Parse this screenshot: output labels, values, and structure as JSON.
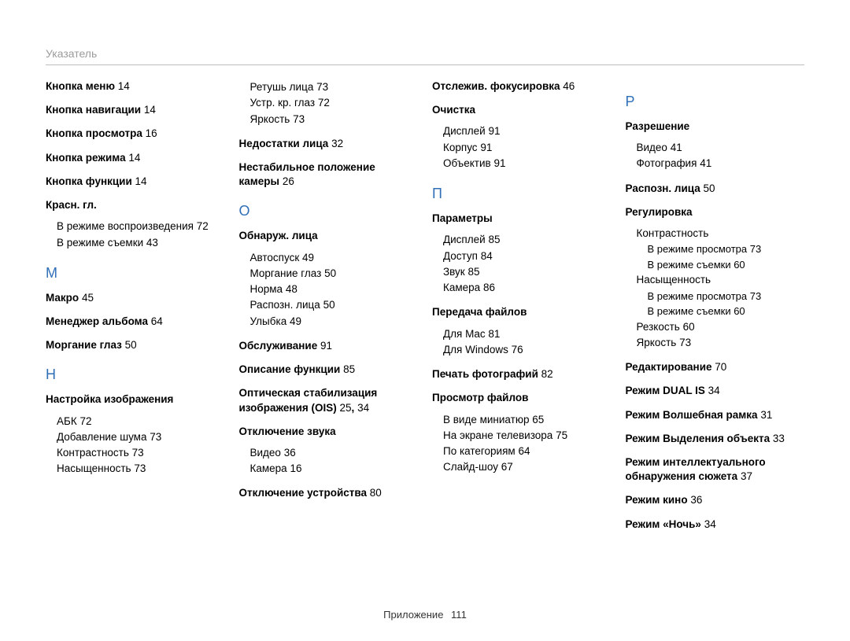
{
  "header": {
    "title": "Указатель"
  },
  "footer": {
    "label": "Приложение",
    "page": "111"
  },
  "colors": {
    "heading": "#2f6fb7",
    "bodyText": "#000000",
    "headerText": "#9b9b9b",
    "rule": "#bdbdbd"
  },
  "columns": [
    {
      "blocks": [
        {
          "type": "entry",
          "label": "Кнопка меню",
          "page": "14"
        },
        {
          "type": "entry",
          "label": "Кнопка навигации",
          "page": "14"
        },
        {
          "type": "entry",
          "label": "Кнопка просмотра",
          "page": "16"
        },
        {
          "type": "entry",
          "label": "Кнопка режима",
          "page": "14"
        },
        {
          "type": "entry",
          "label": "Кнопка функции",
          "page": "14"
        },
        {
          "type": "group",
          "label": "Красн. гл.",
          "items": [
            {
              "label": "В режиме воспроизведения",
              "page": "72"
            },
            {
              "label": "В режиме съемки",
              "page": "43"
            }
          ]
        },
        {
          "type": "letter",
          "letter": "М"
        },
        {
          "type": "entry",
          "label": "Макро",
          "page": "45"
        },
        {
          "type": "entry",
          "label": "Менеджер альбома",
          "page": "64"
        },
        {
          "type": "entry",
          "label": "Моргание глаз",
          "page": "50"
        },
        {
          "type": "letter",
          "letter": "Н"
        },
        {
          "type": "group",
          "label": "Настройка изображения",
          "items": [
            {
              "label": "АБК",
              "page": "72"
            },
            {
              "label": "Добавление шума",
              "page": "73"
            },
            {
              "label": "Контрастность",
              "page": "73"
            },
            {
              "label": "Насыщенность",
              "page": "73"
            }
          ]
        }
      ]
    },
    {
      "blocks": [
        {
          "type": "subonly",
          "items": [
            {
              "label": "Ретушь лица",
              "page": "73"
            },
            {
              "label": "Устр. кр. глаз",
              "page": "72"
            },
            {
              "label": "Яркость",
              "page": "73"
            }
          ]
        },
        {
          "type": "entry",
          "label": "Недостатки лица",
          "page": "32"
        },
        {
          "type": "entry",
          "label": "Нестабильное положение камеры",
          "page": "26"
        },
        {
          "type": "letter",
          "letter": "О"
        },
        {
          "type": "group",
          "label": "Обнаруж. лица",
          "items": [
            {
              "label": "Автоспуск",
              "page": "49"
            },
            {
              "label": "Моргание глаз",
              "page": "50"
            },
            {
              "label": "Норма",
              "page": "48"
            },
            {
              "label": "Распозн. лица",
              "page": "50"
            },
            {
              "label": "Улыбка",
              "page": "49"
            }
          ]
        },
        {
          "type": "entry",
          "label": "Обслуживание",
          "page": "91"
        },
        {
          "type": "entry",
          "label": "Описание функции",
          "page": "85"
        },
        {
          "type": "entry_multi",
          "label": "Оптическая стабилизация изображения (OIS)",
          "pages": [
            "25",
            "34"
          ]
        },
        {
          "type": "group",
          "label": "Отключение звука",
          "items": [
            {
              "label": "Видео",
              "page": "36"
            },
            {
              "label": "Камера",
              "page": "16"
            }
          ]
        },
        {
          "type": "entry",
          "label": "Отключение устройства",
          "page": "80"
        }
      ]
    },
    {
      "blocks": [
        {
          "type": "entry",
          "label": "Отслежив. фокусировка",
          "page": "46"
        },
        {
          "type": "group",
          "label": "Очистка",
          "items": [
            {
              "label": "Дисплей",
              "page": "91"
            },
            {
              "label": "Корпус",
              "page": "91"
            },
            {
              "label": "Объектив",
              "page": "91"
            }
          ]
        },
        {
          "type": "letter",
          "letter": "П"
        },
        {
          "type": "group",
          "label": "Параметры",
          "items": [
            {
              "label": "Дисплей",
              "page": "85"
            },
            {
              "label": "Доступ",
              "page": "84"
            },
            {
              "label": "Звук",
              "page": "85"
            },
            {
              "label": "Камера",
              "page": "86"
            }
          ]
        },
        {
          "type": "group",
          "label": "Передача файлов",
          "items": [
            {
              "label": "Для Mac",
              "page": "81"
            },
            {
              "label": "Для Windows",
              "page": "76"
            }
          ]
        },
        {
          "type": "entry",
          "label": "Печать фотографий",
          "page": "82"
        },
        {
          "type": "group",
          "label": "Просмотр файлов",
          "items": [
            {
              "label": "В виде миниатюр",
              "page": "65"
            },
            {
              "label": "На экране телевизора",
              "page": "75"
            },
            {
              "label": "По категориям",
              "page": "64"
            },
            {
              "label": "Слайд-шоу",
              "page": "67"
            }
          ]
        }
      ]
    },
    {
      "blocks": [
        {
          "type": "letter",
          "letter": "Р"
        },
        {
          "type": "group",
          "label": "Разрешение",
          "items": [
            {
              "label": "Видео",
              "page": "41"
            },
            {
              "label": "Фотография",
              "page": "41"
            }
          ]
        },
        {
          "type": "entry",
          "label": "Распозн. лица",
          "page": "50"
        },
        {
          "type": "nestedgroup",
          "label": "Регулировка",
          "items": [
            {
              "label": "Контрастность",
              "children": [
                {
                  "label": "В режиме просмотра",
                  "page": "73"
                },
                {
                  "label": "В режиме съемки",
                  "page": "60"
                }
              ]
            },
            {
              "label": "Насыщенность",
              "children": [
                {
                  "label": "В режиме просмотра",
                  "page": "73"
                },
                {
                  "label": "В режиме съемки",
                  "page": "60"
                }
              ]
            },
            {
              "label": "Резкость",
              "page": "60"
            },
            {
              "label": "Яркость",
              "page": "73"
            }
          ]
        },
        {
          "type": "entry",
          "label": "Редактирование",
          "page": "70"
        },
        {
          "type": "entry",
          "label": "Режим DUAL IS",
          "page": "34"
        },
        {
          "type": "entry",
          "label": "Режим Волшебная рамка",
          "page": "31"
        },
        {
          "type": "entry",
          "label": "Режим Выделения объекта",
          "page": "33"
        },
        {
          "type": "entry",
          "label": "Режим интеллектуального обнаружения сюжета",
          "page": "37"
        },
        {
          "type": "entry",
          "label": "Режим кино",
          "page": "36"
        },
        {
          "type": "entry",
          "label": "Режим «Ночь»",
          "page": "34"
        }
      ]
    }
  ]
}
